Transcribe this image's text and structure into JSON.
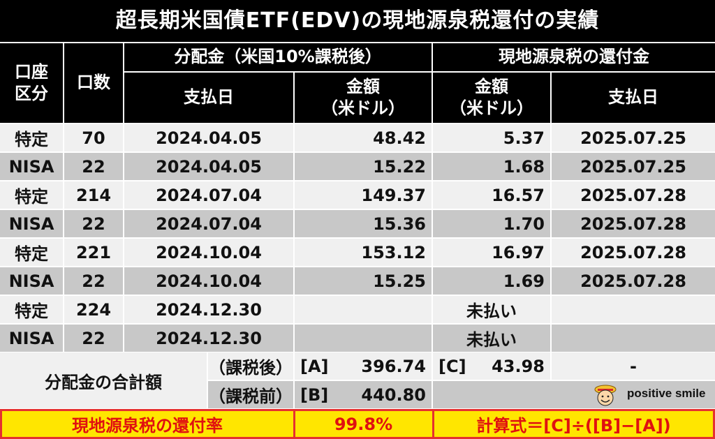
{
  "title": "超長期米国債ETF(EDV)の現地源泉税還付の実績",
  "headers": {
    "account": "口座\n区分",
    "units": "口数",
    "dividend_group": "分配金（米国10%課税後）",
    "refund_group": "現地源泉税の還付金",
    "pay_date": "支払日",
    "amount": "金額\n（米ドル）",
    "refund_amount": "金額\n（米ドル）",
    "refund_date": "支払日"
  },
  "rows": [
    {
      "account": "特定",
      "units": "70",
      "pay_date": "2024.04.05",
      "amount": "48.42",
      "refund": "5.37",
      "refund_date": "2025.07.25"
    },
    {
      "account": "NISA",
      "units": "22",
      "pay_date": "2024.04.05",
      "amount": "15.22",
      "refund": "1.68",
      "refund_date": "2025.07.25"
    },
    {
      "account": "特定",
      "units": "214",
      "pay_date": "2024.07.04",
      "amount": "149.37",
      "refund": "16.57",
      "refund_date": "2025.07.28"
    },
    {
      "account": "NISA",
      "units": "22",
      "pay_date": "2024.07.04",
      "amount": "15.36",
      "refund": "1.70",
      "refund_date": "2025.07.28"
    },
    {
      "account": "特定",
      "units": "221",
      "pay_date": "2024.10.04",
      "amount": "153.12",
      "refund": "16.97",
      "refund_date": "2025.07.28"
    },
    {
      "account": "NISA",
      "units": "22",
      "pay_date": "2024.10.04",
      "amount": "15.25",
      "refund": "1.69",
      "refund_date": "2025.07.28"
    },
    {
      "account": "特定",
      "units": "224",
      "pay_date": "2024.12.30",
      "amount": "",
      "refund": "未払い",
      "refund_date": ""
    },
    {
      "account": "NISA",
      "units": "22",
      "pay_date": "2024.12.30",
      "amount": "",
      "refund": "未払い",
      "refund_date": ""
    }
  ],
  "totals": {
    "label": "分配金の合計額",
    "after_tax_label": "（課税後）",
    "before_tax_label": "（課税前）",
    "a_tag": "[A]",
    "a_value": "396.74",
    "b_tag": "[B]",
    "b_value": "440.80",
    "c_tag": "[C]",
    "c_value": "43.98",
    "dash": "-"
  },
  "footer": {
    "rate_label": "現地源泉税の還付率",
    "rate_value": "99.8%",
    "formula": "計算式＝[C]÷([B]−[A])"
  },
  "brand": {
    "name": "positive smile",
    "colors": {
      "header": "#000000",
      "gray": "#c8c8c8",
      "light": "#f0f0f0",
      "yellow": "#ffe600",
      "red": "#e53030"
    }
  }
}
